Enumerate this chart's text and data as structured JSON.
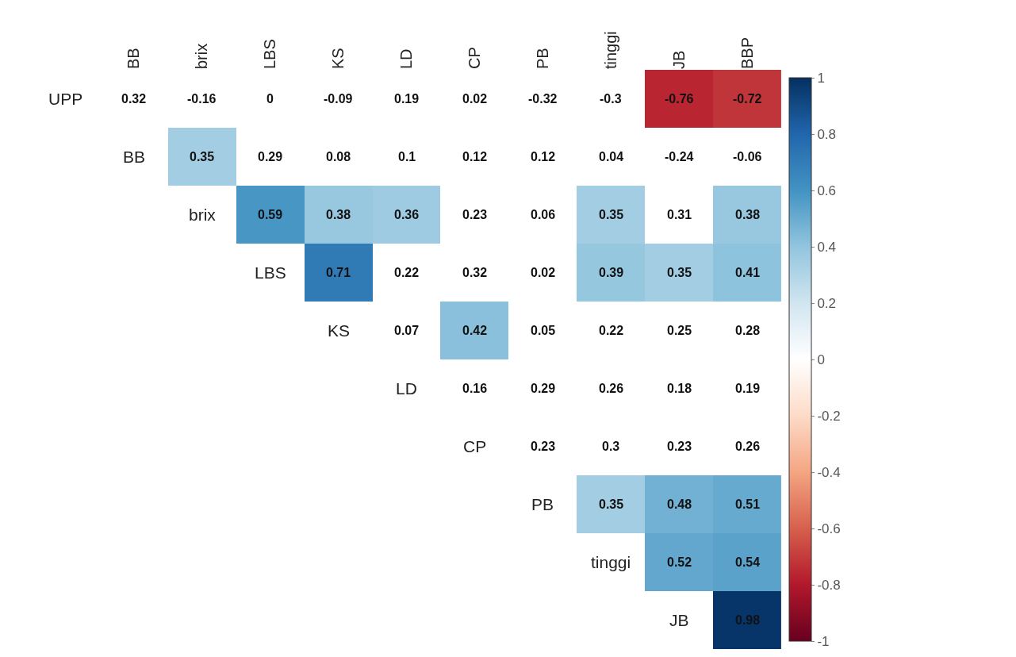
{
  "chart_data": {
    "type": "heatmap",
    "categories": [
      "BB",
      "brix",
      "LBS",
      "KS",
      "LD",
      "CP",
      "PB",
      "tinggi",
      "JB",
      "BBP"
    ],
    "y_categories": [
      "UPP",
      "BB",
      "brix",
      "LBS",
      "KS",
      "LD",
      "CP",
      "PB",
      "tinggi",
      "JB"
    ],
    "cells": [
      [
        null,
        null,
        null,
        null,
        null,
        null,
        null,
        null,
        -0.76,
        -0.72
      ],
      [
        null,
        0.35,
        null,
        null,
        null,
        null,
        null,
        null,
        null,
        null
      ],
      [
        null,
        null,
        0.59,
        0.38,
        0.36,
        null,
        null,
        0.35,
        null,
        0.38
      ],
      [
        null,
        null,
        null,
        0.71,
        null,
        null,
        null,
        0.39,
        0.35,
        0.41
      ],
      [
        null,
        null,
        null,
        null,
        null,
        0.42,
        null,
        null,
        null,
        null
      ],
      [
        null,
        null,
        null,
        null,
        null,
        null,
        null,
        null,
        null,
        null
      ],
      [
        null,
        null,
        null,
        null,
        null,
        null,
        null,
        null,
        null,
        null
      ],
      [
        null,
        null,
        null,
        null,
        null,
        null,
        null,
        0.35,
        0.48,
        0.51
      ],
      [
        null,
        null,
        null,
        null,
        null,
        null,
        null,
        null,
        0.52,
        0.54
      ],
      [
        null,
        null,
        null,
        null,
        null,
        null,
        null,
        null,
        null,
        0.98
      ]
    ],
    "cell_labels": [
      [
        "0.32",
        "-0.16",
        "0",
        "-0.09",
        "0.19",
        "0.02",
        "-0.32",
        "-0.3",
        "-0.76",
        "-0.72"
      ],
      [
        null,
        "0.35",
        "0.29",
        "0.08",
        "0.1",
        "0.12",
        "0.12",
        "0.04",
        "-0.24",
        "-0.06"
      ],
      [
        null,
        null,
        "0.59",
        "0.38",
        "0.36",
        "0.23",
        "0.06",
        "0.35",
        "0.31",
        "0.38"
      ],
      [
        null,
        null,
        null,
        "0.71",
        "0.22",
        "0.32",
        "0.02",
        "0.39",
        "0.35",
        "0.41"
      ],
      [
        null,
        null,
        null,
        null,
        "0.07",
        "0.42",
        "0.05",
        "0.22",
        "0.25",
        "0.28"
      ],
      [
        null,
        null,
        null,
        null,
        null,
        "0.16",
        "0.29",
        "0.26",
        "0.18",
        "0.19"
      ],
      [
        null,
        null,
        null,
        null,
        null,
        null,
        "0.23",
        "0.3",
        "0.23",
        "0.26"
      ],
      [
        null,
        null,
        null,
        null,
        null,
        null,
        null,
        "0.35",
        "0.48",
        "0.51"
      ],
      [
        null,
        null,
        null,
        null,
        null,
        null,
        null,
        null,
        "0.52",
        "0.54"
      ],
      [
        null,
        null,
        null,
        null,
        null,
        null,
        null,
        null,
        null,
        "0.98"
      ]
    ],
    "clim": [
      -1,
      1
    ],
    "cticks": [
      -1,
      -0.8,
      -0.6,
      -0.4,
      -0.2,
      0,
      0.2,
      0.4,
      0.6,
      0.8,
      1
    ]
  }
}
